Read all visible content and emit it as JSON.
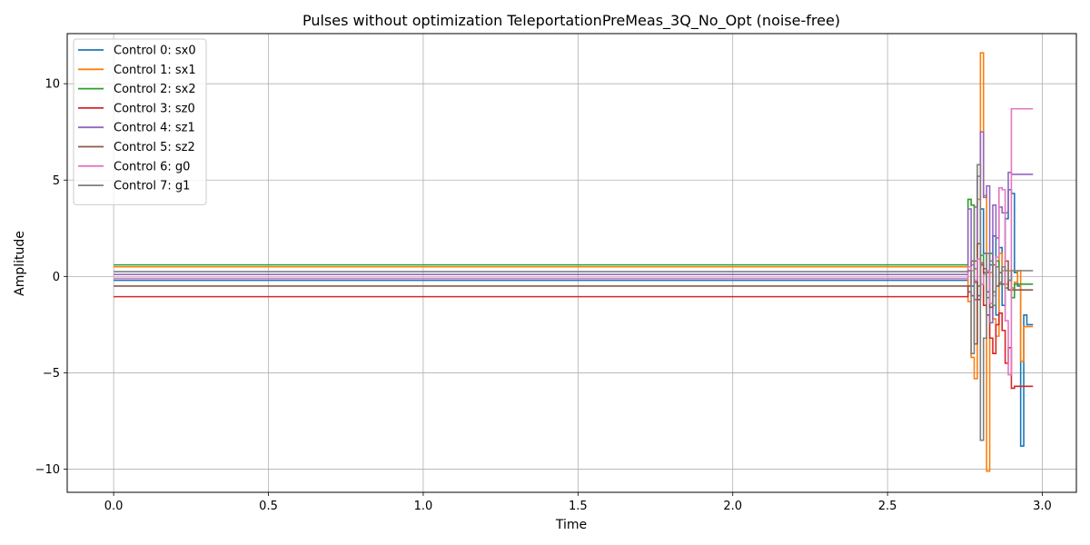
{
  "chart_data": {
    "type": "line",
    "title": "Pulses without optimization TeleportationPreMeas_3Q_No_Opt (noise-free)",
    "xlabel": "Time",
    "ylabel": "Amplitude",
    "xlim": [
      -0.15,
      3.11
    ],
    "ylim": [
      -11.2,
      12.6
    ],
    "xticks": [
      0.0,
      0.5,
      1.0,
      1.5,
      2.0,
      2.5,
      3.0
    ],
    "xtick_labels": [
      "0.0",
      "0.5",
      "1.0",
      "1.5",
      "2.0",
      "2.5",
      "3.0"
    ],
    "yticks": [
      -10,
      -5,
      0,
      5,
      10
    ],
    "ytick_labels": [
      "−10",
      "−5",
      "0",
      "5",
      "10"
    ],
    "grid": true,
    "legend_position": "top-left",
    "step": "post",
    "series": [
      {
        "name": "Control 0: sx0",
        "color": "#1f77b4",
        "x": [
          0.0,
          2.76,
          2.77,
          2.78,
          2.79,
          2.8,
          2.81,
          2.82,
          2.83,
          2.84,
          2.85,
          2.86,
          2.87,
          2.88,
          2.89,
          2.9,
          2.91,
          2.92,
          2.93,
          2.94,
          2.95,
          2.96
        ],
        "y": [
          -0.2,
          0.3,
          -0.5,
          0.8,
          -1.0,
          3.5,
          1.2,
          -0.8,
          0.6,
          2.1,
          -2.0,
          1.5,
          -1.5,
          3.0,
          4.5,
          4.3,
          0.2,
          -0.5,
          -8.8,
          -2.0,
          -2.5,
          -2.5
        ]
      },
      {
        "name": "Control 1: sx1",
        "color": "#ff7f0e",
        "x": [
          0.0,
          2.76,
          2.77,
          2.78,
          2.79,
          2.8,
          2.81,
          2.82,
          2.83,
          2.84,
          2.85,
          2.86,
          2.87,
          2.88,
          2.89,
          2.9,
          2.91,
          2.92,
          2.93,
          2.94,
          2.95,
          2.96
        ],
        "y": [
          0.5,
          -1.3,
          -4.2,
          -5.3,
          4.0,
          11.6,
          4.2,
          -10.1,
          0.2,
          -2.2,
          -3.1,
          1.2,
          0.3,
          -0.4,
          0.3,
          -0.6,
          -0.3,
          0.3,
          -4.4,
          -2.6,
          -2.6,
          -2.6
        ]
      },
      {
        "name": "Control 2: sx2",
        "color": "#2ca02c",
        "x": [
          0.0,
          2.76,
          2.77,
          2.78,
          2.79,
          2.8,
          2.81,
          2.82,
          2.83,
          2.84,
          2.85,
          2.86,
          2.87,
          2.88,
          2.89,
          2.9,
          2.91,
          2.92,
          2.93,
          2.94,
          2.95,
          2.96
        ],
        "y": [
          0.6,
          4.0,
          3.7,
          0.4,
          -0.5,
          1.1,
          0.2,
          -1.1,
          1.2,
          -0.8,
          0.8,
          -0.4,
          0.5,
          -0.6,
          -0.2,
          -1.1,
          -0.4,
          -0.4,
          -0.4,
          -0.4,
          -0.4,
          -0.4
        ]
      },
      {
        "name": "Control 3: sz0",
        "color": "#d62728",
        "x": [
          0.0,
          2.76,
          2.77,
          2.78,
          2.79,
          2.8,
          2.81,
          2.82,
          2.83,
          2.84,
          2.85,
          2.86,
          2.87,
          2.88,
          2.89,
          2.9,
          2.91,
          2.92,
          2.93,
          2.94,
          2.95,
          2.96
        ],
        "y": [
          -1.05,
          -0.5,
          0.8,
          -0.3,
          -1.2,
          0.6,
          -1.5,
          -2.0,
          -3.2,
          -4.0,
          -2.5,
          -1.9,
          -2.8,
          -4.5,
          -3.7,
          -5.8,
          -5.7,
          -5.7,
          -5.7,
          -5.7,
          -5.7,
          -5.7
        ]
      },
      {
        "name": "Control 4: sz1",
        "color": "#9467bd",
        "x": [
          0.0,
          2.76,
          2.77,
          2.78,
          2.79,
          2.8,
          2.81,
          2.82,
          2.83,
          2.84,
          2.85,
          2.86,
          2.87,
          2.88,
          2.89,
          2.9,
          2.91,
          2.92,
          2.93,
          2.94,
          2.95,
          2.96
        ],
        "y": [
          0.1,
          3.5,
          0.6,
          -1.2,
          5.2,
          7.5,
          4.1,
          4.7,
          -2.4,
          3.7,
          2.0,
          3.6,
          3.3,
          3.3,
          5.4,
          5.3,
          5.3,
          5.3,
          5.3,
          5.3,
          5.3,
          5.3
        ]
      },
      {
        "name": "Control 5: sz2",
        "color": "#8c564b",
        "x": [
          0.0,
          2.76,
          2.77,
          2.78,
          2.79,
          2.8,
          2.81,
          2.82,
          2.83,
          2.84,
          2.85,
          2.86,
          2.87,
          2.88,
          2.89,
          2.9,
          2.91,
          2.92,
          2.93,
          2.94,
          2.95,
          2.96
        ],
        "y": [
          -0.5,
          -0.8,
          -1.0,
          -3.5,
          1.7,
          0.7,
          0.4,
          0.2,
          -1.6,
          0.6,
          -0.5,
          0.2,
          -0.4,
          0.8,
          -0.7,
          -0.7,
          -0.7,
          -0.7,
          -0.7,
          -0.7,
          -0.7,
          -0.7
        ]
      },
      {
        "name": "Control 6: g0",
        "color": "#e377c2",
        "x": [
          0.0,
          2.76,
          2.77,
          2.78,
          2.79,
          2.8,
          2.81,
          2.82,
          2.83,
          2.84,
          2.85,
          2.86,
          2.87,
          2.88,
          2.89,
          2.9,
          2.91,
          2.92,
          2.93,
          2.94,
          2.95,
          2.96
        ],
        "y": [
          -0.1,
          0.5,
          0.3,
          -0.2,
          0.9,
          -0.4,
          0.1,
          0.3,
          -1.4,
          -1.0,
          1.0,
          4.6,
          4.5,
          -2.3,
          -5.1,
          8.7,
          8.7,
          8.7,
          8.7,
          8.7,
          8.7,
          8.7
        ]
      },
      {
        "name": "Control 7: g1",
        "color": "#7f7f7f",
        "x": [
          0.0,
          2.76,
          2.77,
          2.78,
          2.79,
          2.8,
          2.81,
          2.82,
          2.83,
          2.84,
          2.85,
          2.86,
          2.87,
          2.88,
          2.89,
          2.9,
          2.91,
          2.92,
          2.93,
          2.94,
          2.95,
          2.96
        ],
        "y": [
          0.25,
          0.3,
          -4.0,
          3.6,
          5.8,
          -8.5,
          -3.2,
          1.2,
          0.8,
          -1.5,
          0.5,
          -0.3,
          0.5,
          0.3,
          -0.2,
          0.3,
          0.3,
          0.3,
          0.3,
          0.3,
          0.3,
          0.3
        ]
      }
    ]
  }
}
